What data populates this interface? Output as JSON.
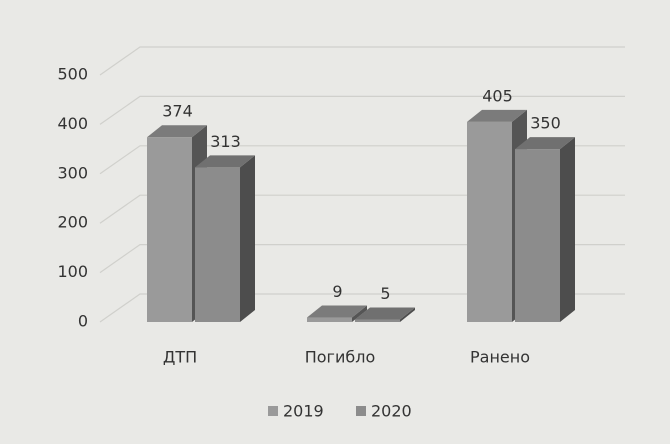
{
  "chart_data": {
    "type": "bar3d",
    "categories": [
      "ДТП",
      "Погибло",
      "Ранено"
    ],
    "series": [
      {
        "name": "2019",
        "color": "#9a9a9a",
        "values": [
          374,
          9,
          405
        ]
      },
      {
        "name": "2020",
        "color": "#8c8c8c",
        "values": [
          313,
          5,
          350
        ]
      }
    ],
    "ylim": [
      0,
      500
    ],
    "yticks": [
      0,
      100,
      200,
      300,
      400,
      500
    ],
    "grid": true,
    "legend": "bottom"
  }
}
